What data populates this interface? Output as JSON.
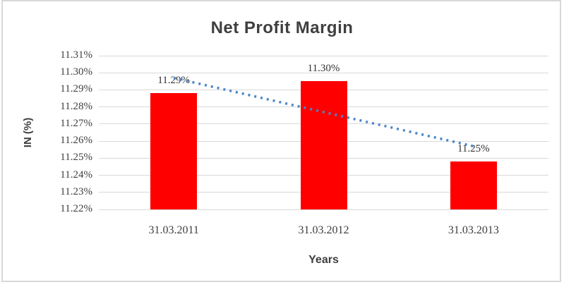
{
  "page": {
    "background": "#FFFFFF",
    "frame_border_color": "#D8D8D8"
  },
  "chart_data": {
    "type": "bar",
    "title": "Net Profit Margin",
    "xlabel": "Years",
    "ylabel": "IN (%)",
    "categories": [
      "31.03.2011",
      "31.03.2012",
      "31.03.2013"
    ],
    "values": [
      11.288,
      11.295,
      11.248
    ],
    "data_labels": [
      "11.29%",
      "11.30%",
      "11.25%"
    ],
    "ylim": [
      11.22,
      11.31
    ],
    "y_tick_step": 0.01,
    "y_tick_labels": [
      "11.22%",
      "11.23%",
      "11.24%",
      "11.25%",
      "11.26%",
      "11.27%",
      "11.28%",
      "11.29%",
      "11.30%",
      "11.31%"
    ],
    "grid": true,
    "legend": "none",
    "bar_color": "#FF0000",
    "gridline_color": "#D9D9D9",
    "text_color": "#404040",
    "trendline": {
      "type": "linear",
      "style": "dotted",
      "color": "#4A86C8",
      "start_value": 11.297,
      "end_value": 11.257
    }
  }
}
